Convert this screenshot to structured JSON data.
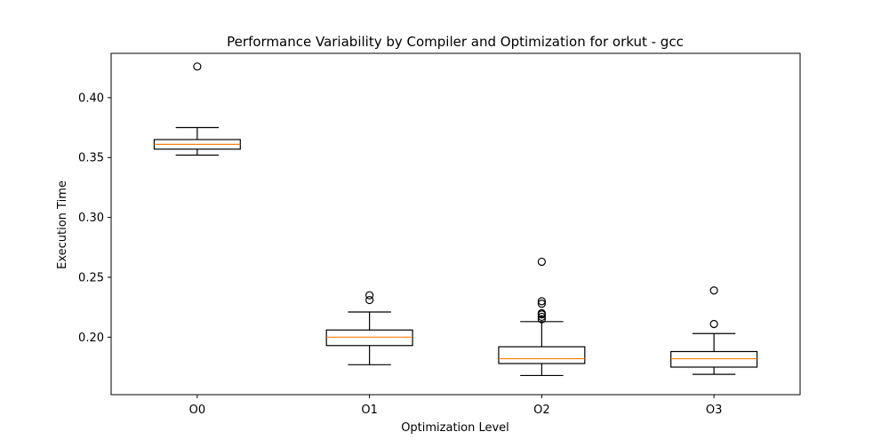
{
  "chart_data": {
    "type": "box",
    "title": "Performance Variability by Compiler and Optimization for orkut - gcc",
    "xlabel": "Optimization Level",
    "ylabel": "Execution Time",
    "categories": [
      "O0",
      "O1",
      "O2",
      "O3"
    ],
    "ylim": [
      0.152,
      0.437
    ],
    "yticks": [
      0.2,
      0.25,
      0.3,
      0.35,
      0.4
    ],
    "ytick_labels": [
      "0.20",
      "0.25",
      "0.30",
      "0.35",
      "0.40"
    ],
    "grid": false,
    "colors": {
      "box": "#000000",
      "median": "#ff7f0e"
    },
    "boxes": [
      {
        "category": "O0",
        "whisker_low": 0.352,
        "q1": 0.357,
        "median": 0.361,
        "q3": 0.365,
        "whisker_high": 0.375,
        "outliers": [
          0.426
        ]
      },
      {
        "category": "O1",
        "whisker_low": 0.177,
        "q1": 0.193,
        "median": 0.2,
        "q3": 0.206,
        "whisker_high": 0.221,
        "outliers": [
          0.231,
          0.235
        ]
      },
      {
        "category": "O2",
        "whisker_low": 0.168,
        "q1": 0.178,
        "median": 0.182,
        "q3": 0.192,
        "whisker_high": 0.213,
        "outliers": [
          0.215,
          0.217,
          0.219,
          0.22,
          0.228,
          0.23,
          0.263
        ]
      },
      {
        "category": "O3",
        "whisker_low": 0.169,
        "q1": 0.175,
        "median": 0.182,
        "q3": 0.188,
        "whisker_high": 0.203,
        "outliers": [
          0.211,
          0.239
        ]
      }
    ]
  }
}
